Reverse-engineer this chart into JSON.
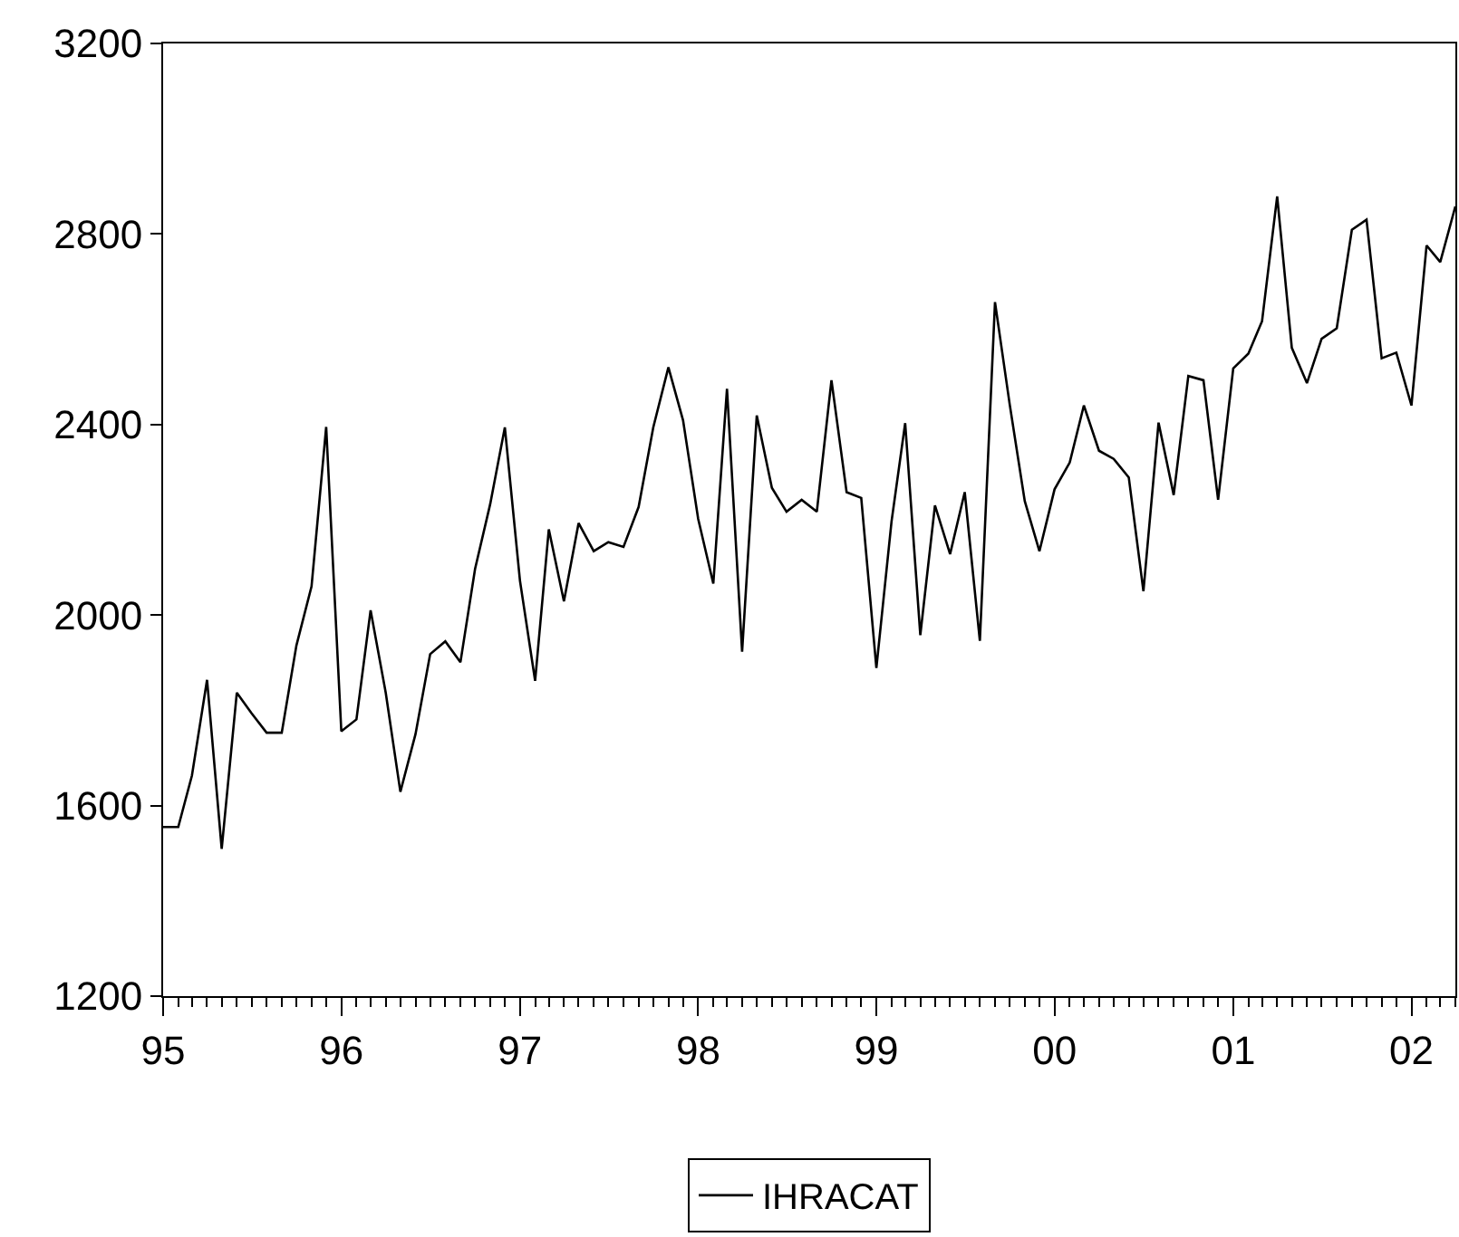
{
  "chart_data": {
    "type": "line",
    "x": [
      "1995-01",
      "1995-02",
      "1995-03",
      "1995-04",
      "1995-05",
      "1995-06",
      "1995-07",
      "1995-08",
      "1995-09",
      "1995-10",
      "1995-11",
      "1995-12",
      "1996-01",
      "1996-02",
      "1996-03",
      "1996-04",
      "1996-05",
      "1996-06",
      "1996-07",
      "1996-08",
      "1996-09",
      "1996-10",
      "1996-11",
      "1996-12",
      "1997-01",
      "1997-02",
      "1997-03",
      "1997-04",
      "1997-05",
      "1997-06",
      "1997-07",
      "1997-08",
      "1997-09",
      "1997-10",
      "1997-11",
      "1997-12",
      "1998-01",
      "1998-02",
      "1998-03",
      "1998-04",
      "1998-05",
      "1998-06",
      "1998-07",
      "1998-08",
      "1998-09",
      "1998-10",
      "1998-11",
      "1998-12",
      "1999-01",
      "1999-02",
      "1999-03",
      "1999-04",
      "1999-05",
      "1999-06",
      "1999-07",
      "1999-08",
      "1999-09",
      "1999-10",
      "1999-11",
      "1999-12",
      "2000-01",
      "2000-02",
      "2000-03",
      "2000-04",
      "2000-05",
      "2000-06",
      "2000-07",
      "2000-08",
      "2000-09",
      "2000-10",
      "2000-11",
      "2000-12",
      "2001-01",
      "2001-02",
      "2001-03",
      "2001-04",
      "2001-05",
      "2001-06",
      "2001-07",
      "2001-08",
      "2001-09",
      "2001-10",
      "2001-11",
      "2001-12",
      "2002-01",
      "2002-02",
      "2002-03",
      "2002-04"
    ],
    "series": [
      {
        "name": "IHRACAT",
        "color": "#000000",
        "values": [
          1555,
          1555,
          1663,
          1864,
          1509,
          1837,
          1794,
          1753,
          1753,
          1936,
          2060,
          2395,
          1756,
          1781,
          2010,
          1837,
          1629,
          1750,
          1918,
          1945,
          1901,
          2097,
          2233,
          2394,
          2072,
          1862,
          2180,
          2029,
          2193,
          2134,
          2153,
          2143,
          2227,
          2394,
          2520,
          2409,
          2202,
          2066,
          2475,
          1923,
          2419,
          2267,
          2217,
          2242,
          2217,
          2493,
          2258,
          2246,
          1889,
          2196,
          2403,
          1958,
          2230,
          2128,
          2258,
          1946,
          2657,
          2443,
          2239,
          2134,
          2264,
          2320,
          2440,
          2345,
          2328,
          2289,
          2050,
          2404,
          2252,
          2502,
          2493,
          2242,
          2518,
          2549,
          2617,
          2879,
          2561,
          2487,
          2580,
          2602,
          2809,
          2830,
          2539,
          2551,
          2440,
          2776,
          2741,
          2858
        ]
      }
    ],
    "xlim": [
      "1995-01",
      "2002-04"
    ],
    "xticks": [
      {
        "value": "1995-01",
        "label": "95"
      },
      {
        "value": "1996-01",
        "label": "96"
      },
      {
        "value": "1997-01",
        "label": "97"
      },
      {
        "value": "1998-01",
        "label": "98"
      },
      {
        "value": "1999-01",
        "label": "99"
      },
      {
        "value": "2000-01",
        "label": "00"
      },
      {
        "value": "2001-01",
        "label": "01"
      },
      {
        "value": "2002-01",
        "label": "02"
      }
    ],
    "ylim": [
      1200,
      3200
    ],
    "yticks": [
      1200,
      1600,
      2000,
      2400,
      2800,
      3200
    ],
    "grid": false,
    "legend": "bottom",
    "marker": "none",
    "line_style": "solid"
  }
}
